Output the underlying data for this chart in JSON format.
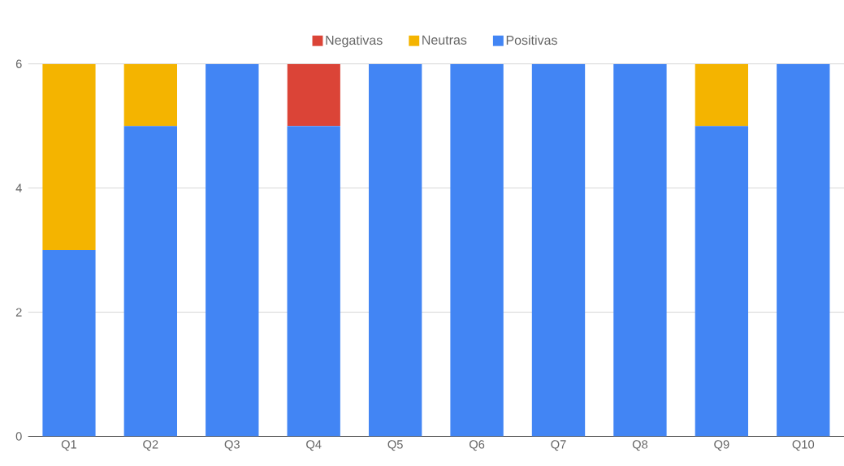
{
  "chart_data": {
    "type": "bar",
    "stacked": true,
    "categories": [
      "Q1",
      "Q2",
      "Q3",
      "Q4",
      "Q5",
      "Q6",
      "Q7",
      "Q8",
      "Q9",
      "Q10"
    ],
    "series": [
      {
        "name": "Positivas",
        "color": "#4285f4",
        "values": [
          3,
          5,
          6,
          5,
          6,
          6,
          6,
          6,
          5,
          6
        ]
      },
      {
        "name": "Neutras",
        "color": "#f4b400",
        "values": [
          3,
          1,
          0,
          0,
          0,
          0,
          0,
          0,
          1,
          0
        ]
      },
      {
        "name": "Negativas",
        "color": "#db4437",
        "values": [
          0,
          0,
          0,
          1,
          0,
          0,
          0,
          0,
          0,
          0
        ]
      }
    ],
    "ylim": [
      0,
      6
    ],
    "yticks": [
      0,
      2,
      4,
      6
    ],
    "grid": "y",
    "legend": "top"
  }
}
